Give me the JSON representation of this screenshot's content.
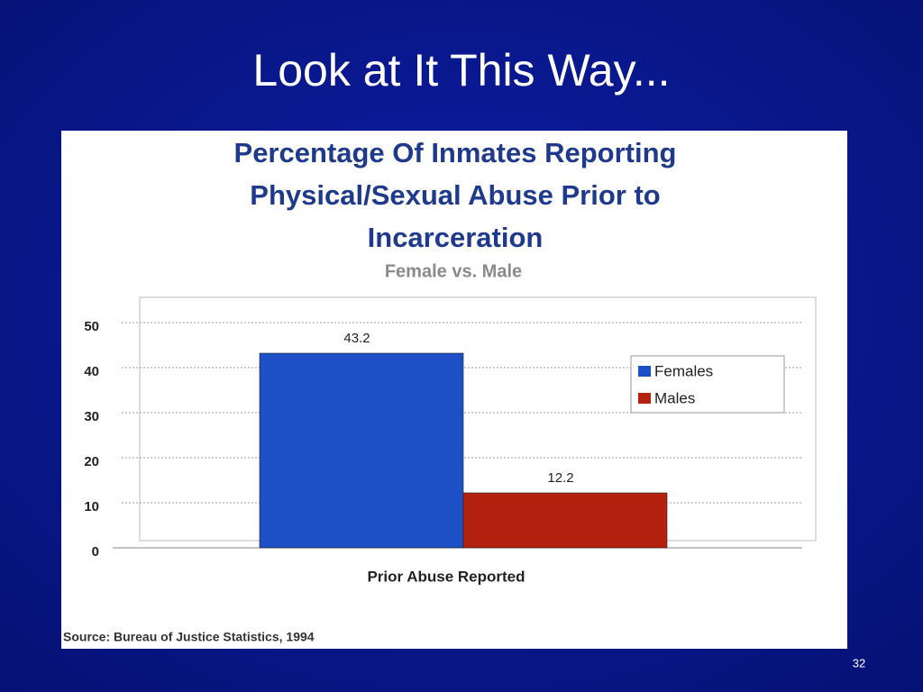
{
  "slide": {
    "title": "Look at It This Way...",
    "number": "32"
  },
  "chart_data": {
    "type": "bar",
    "title": "Percentage Of Inmates Reporting Physical/Sexual Abuse Prior to Incarceration",
    "subtitle": "Female vs. Male",
    "source": "Source: Bureau of Justice Statistics, 1994",
    "categories": [
      "Prior Abuse Reported"
    ],
    "series": [
      {
        "name": "Females",
        "color": "#1d4fc6",
        "values": [
          43.2
        ]
      },
      {
        "name": "Males",
        "color": "#b4210f",
        "values": [
          12.2
        ]
      }
    ],
    "ylim": [
      0,
      50
    ],
    "yticks": [
      0,
      10,
      20,
      30,
      40,
      50
    ],
    "grid": true,
    "legend": "right"
  }
}
